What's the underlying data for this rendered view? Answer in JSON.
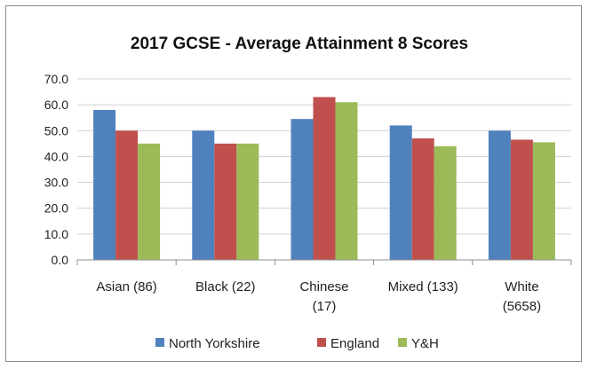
{
  "chart_data": {
    "type": "bar",
    "title": "2017 GCSE - Average Attainment 8 Scores",
    "categories": [
      [
        "Asian (86)"
      ],
      [
        "Black (22)"
      ],
      [
        "Chinese",
        "(17)"
      ],
      [
        "Mixed (133)"
      ],
      [
        "White",
        "(5658)"
      ]
    ],
    "series": [
      {
        "name": "North Yorkshire",
        "color": "#4f81bd",
        "values": [
          58.0,
          50.0,
          54.5,
          52.0,
          50.0
        ]
      },
      {
        "name": "England",
        "color": "#c0504d",
        "values": [
          50.0,
          45.0,
          63.0,
          47.0,
          46.5
        ]
      },
      {
        "name": "Y&H",
        "color": "#9bbb59",
        "values": [
          45.0,
          45.0,
          61.0,
          44.0,
          45.5
        ]
      }
    ],
    "ylim": [
      0,
      70
    ],
    "yticks": [
      "0.0",
      "10.0",
      "20.0",
      "30.0",
      "40.0",
      "50.0",
      "60.0",
      "70.0"
    ],
    "grid": true,
    "legend_position": "bottom"
  }
}
